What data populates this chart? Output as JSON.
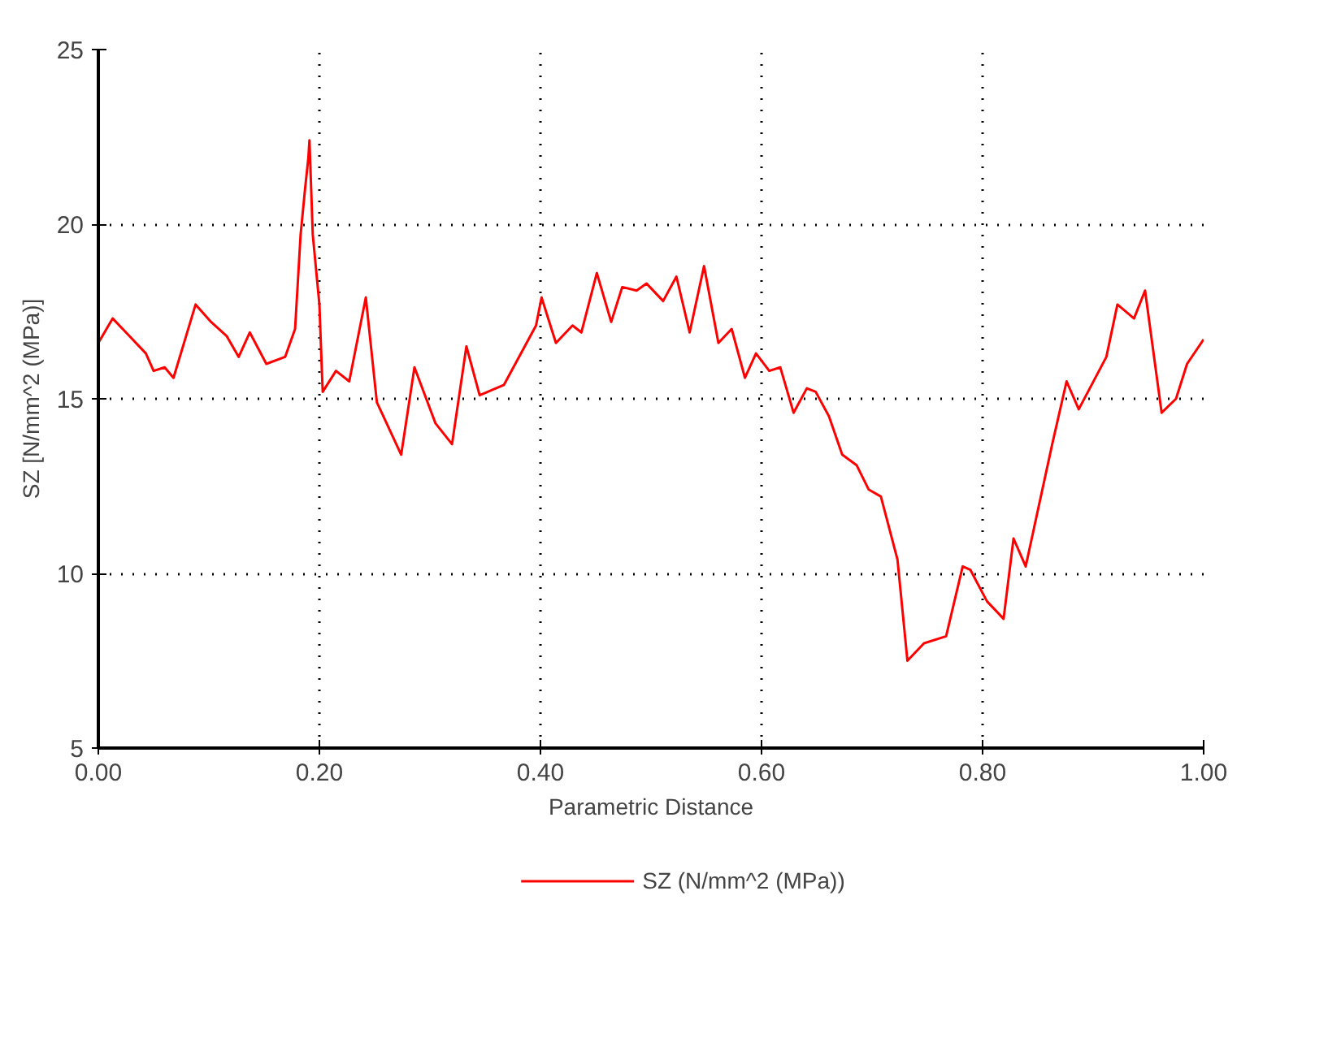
{
  "chart_data": {
    "type": "line",
    "xlabel": "Parametric Distance",
    "ylabel": "SZ [N/mm^2 (MPa)]",
    "xlim": [
      0,
      1
    ],
    "ylim": [
      5,
      25
    ],
    "xticks": [
      {
        "value": 0,
        "label": "0.00"
      },
      {
        "value": 0.2,
        "label": "0.20"
      },
      {
        "value": 0.4,
        "label": "0.40"
      },
      {
        "value": 0.6,
        "label": "0.60"
      },
      {
        "value": 0.8,
        "label": "0.80"
      },
      {
        "value": 1,
        "label": "1.00"
      }
    ],
    "yticks": [
      5,
      10,
      15,
      20,
      25
    ],
    "grid": true,
    "legend": "bottom",
    "line_style": "solid",
    "marker": "none",
    "series": [
      {
        "name": "SZ (N/mm^2 (MPa))",
        "color": "#ff0000",
        "x": [
          0,
          0.013,
          0.025,
          0.043,
          0.05,
          0.06,
          0.068,
          0.088,
          0.102,
          0.116,
          0.127,
          0.137,
          0.152,
          0.169,
          0.178,
          0.183,
          0.187,
          0.19,
          0.191,
          0.194,
          0.2,
          0.202,
          0.203,
          0.215,
          0.227,
          0.242,
          0.252,
          0.274,
          0.286,
          0.305,
          0.32,
          0.333,
          0.345,
          0.367,
          0.396,
          0.401,
          0.414,
          0.429,
          0.437,
          0.451,
          0.464,
          0.474,
          0.487,
          0.496,
          0.511,
          0.523,
          0.535,
          0.548,
          0.561,
          0.573,
          0.585,
          0.595,
          0.607,
          0.617,
          0.629,
          0.641,
          0.649,
          0.661,
          0.673,
          0.686,
          0.697,
          0.708,
          0.723,
          0.732,
          0.747,
          0.767,
          0.782,
          0.789,
          0.804,
          0.819,
          0.828,
          0.839,
          0.863,
          0.876,
          0.887,
          0.912,
          0.922,
          0.937,
          0.947,
          0.962,
          0.975,
          0.985,
          1.0
        ],
        "values": [
          16.6,
          17.3,
          16.9,
          16.3,
          15.8,
          15.9,
          15.6,
          17.7,
          17.2,
          16.8,
          16.2,
          16.9,
          16.0,
          16.2,
          17.0,
          19.7,
          21.0,
          21.9,
          22.4,
          19.7,
          17.7,
          16.0,
          15.2,
          15.8,
          15.5,
          17.9,
          14.9,
          13.4,
          15.9,
          14.3,
          13.7,
          16.5,
          15.1,
          15.4,
          17.1,
          17.9,
          16.6,
          17.1,
          16.9,
          18.6,
          17.2,
          18.2,
          18.1,
          18.3,
          17.8,
          18.5,
          16.9,
          18.8,
          16.6,
          17.0,
          15.6,
          16.3,
          15.8,
          15.9,
          14.6,
          15.3,
          15.2,
          14.5,
          13.4,
          13.1,
          12.4,
          12.2,
          10.4,
          7.5,
          8.0,
          8.2,
          10.2,
          10.1,
          9.2,
          8.7,
          11.0,
          10.2,
          13.7,
          15.5,
          14.7,
          16.2,
          17.7,
          17.3,
          18.1,
          14.6,
          15.0,
          16.0,
          16.7
        ]
      }
    ]
  }
}
